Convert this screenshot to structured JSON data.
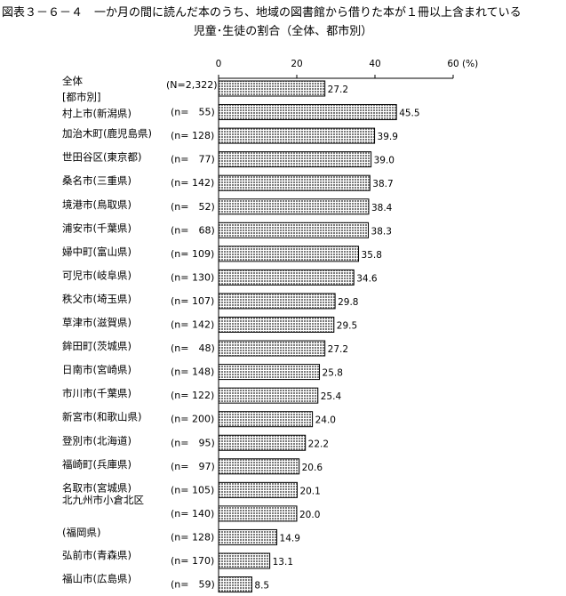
{
  "title_line1": "図表３－６－４　一か月の間に読んだ本のうち、地域の図書館から借りた本が１冊以上含まれている",
  "title_line2": "児童･生徒の割合（全体、都市別）",
  "chart_data": {
    "type": "bar",
    "orientation": "horizontal",
    "title": "図表３－６－４　一か月の間に読んだ本のうち、地域の図書館から借りた本が１冊以上含まれている児童･生徒の割合（全体、都市別）",
    "xlim": [
      0,
      60
    ],
    "xticks": [
      0,
      20,
      40,
      60
    ],
    "unit_label": "(%)",
    "bar_fill": "#b8b8b8",
    "categories": [
      {
        "label": "全体",
        "n": "(N=2,322)",
        "value": 27.2
      },
      {
        "label": "村上市(新潟県)",
        "n": "(n=　55)",
        "value": 45.5
      },
      {
        "label": "加治木町(鹿児島県)",
        "n": "(n= 128)",
        "value": 39.9
      },
      {
        "label": "世田谷区(東京都)",
        "n": "(n=　77)",
        "value": 39.0
      },
      {
        "label": "桑名市(三重県)",
        "n": "(n= 142)",
        "value": 38.7
      },
      {
        "label": "境港市(鳥取県)",
        "n": "(n=　52)",
        "value": 38.4
      },
      {
        "label": "浦安市(千葉県)",
        "n": "(n=　68)",
        "value": 38.3
      },
      {
        "label": "婦中町(富山県)",
        "n": "(n= 109)",
        "value": 35.8
      },
      {
        "label": "可児市(岐阜県)",
        "n": "(n= 130)",
        "value": 34.6
      },
      {
        "label": "秩父市(埼玉県)",
        "n": "(n= 107)",
        "value": 29.8
      },
      {
        "label": "草津市(滋賀県)",
        "n": "(n= 142)",
        "value": 29.5
      },
      {
        "label": "鉾田町(茨城県)",
        "n": "(n=　48)",
        "value": 27.2
      },
      {
        "label": "日南市(宮崎県)",
        "n": "(n= 148)",
        "value": 25.8
      },
      {
        "label": "市川市(千葉県)",
        "n": "(n= 122)",
        "value": 25.4
      },
      {
        "label": "新宮市(和歌山県)",
        "n": "(n= 200)",
        "value": 24.0
      },
      {
        "label": "登別市(北海道)",
        "n": "(n=　95)",
        "value": 22.2
      },
      {
        "label": "福崎町(兵庫県)",
        "n": "(n=　97)",
        "value": 20.6
      },
      {
        "label": "名取市(宮城県)",
        "n": "(n= 105)",
        "value": 20.1
      },
      {
        "label": "北九州市小倉北区",
        "n": "(n= 140)",
        "value": 20.0
      },
      {
        "label": "(福岡県)",
        "n": "(n= 128)",
        "value": 14.9
      },
      {
        "label": "弘前市(青森県)",
        "n": "(n= 170)",
        "value": 13.1
      },
      {
        "label": "福山市(広島県)",
        "n": "(n=　59)",
        "value": 8.5
      }
    ],
    "group_label": "[都市別]"
  }
}
